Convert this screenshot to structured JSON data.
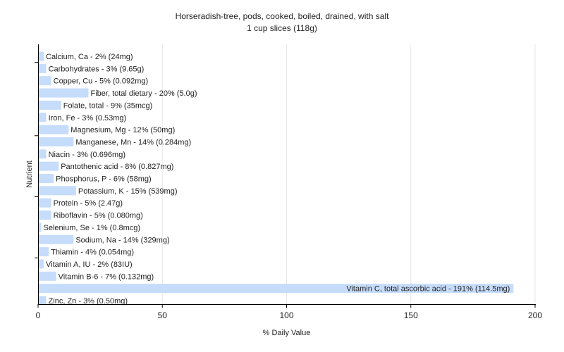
{
  "chart_data": {
    "type": "bar",
    "orientation": "horizontal",
    "title": "Horseradish-tree, pods, cooked, boiled, drained, with salt",
    "subtitle": "1 cup slices (118g)",
    "xlabel": "% Daily Value",
    "ylabel": "Nutrient",
    "xlim": [
      0,
      200
    ],
    "xticks": [
      "0",
      "50",
      "100",
      "150",
      "200"
    ],
    "grid": true,
    "bar_color": "#c6dcfb",
    "categories": [
      "Calcium, Ca",
      "Carbohydrates",
      "Copper, Cu",
      "Fiber, total dietary",
      "Folate, total",
      "Iron, Fe",
      "Magnesium, Mg",
      "Manganese, Mn",
      "Niacin",
      "Pantothenic acid",
      "Phosphorus, P",
      "Potassium, K",
      "Protein",
      "Riboflavin",
      "Selenium, Se",
      "Sodium, Na",
      "Thiamin",
      "Vitamin A, IU",
      "Vitamin B-6",
      "Vitamin C, total ascorbic acid",
      "Zinc, Zn"
    ],
    "values": [
      2,
      3,
      5,
      20,
      9,
      3,
      12,
      14,
      3,
      8,
      6,
      15,
      5,
      5,
      1,
      14,
      4,
      2,
      7,
      191,
      3
    ],
    "labels": [
      "Calcium, Ca - 2% (24mg)",
      "Carbohydrates - 3% (9.65g)",
      "Copper, Cu - 5% (0.092mg)",
      "Fiber, total dietary - 20% (5.0g)",
      "Folate, total - 9% (35mcg)",
      "Iron, Fe - 3% (0.53mg)",
      "Magnesium, Mg - 12% (50mg)",
      "Manganese, Mn - 14% (0.284mg)",
      "Niacin - 3% (0.696mg)",
      "Pantothenic acid - 8% (0.827mg)",
      "Phosphorus, P - 6% (58mg)",
      "Potassium, K - 15% (539mg)",
      "Protein - 5% (2.47g)",
      "Riboflavin - 5% (0.080mg)",
      "Selenium, Se - 1% (0.8mcg)",
      "Sodium, Na - 14% (329mg)",
      "Thiamin - 4% (0.054mg)",
      "Vitamin A, IU - 2% (83IU)",
      "Vitamin B-6 - 7% (0.132mg)",
      "Vitamin C, total ascorbic acid - 191% (114.5mg)",
      "Zinc, Zn - 3% (0.50mg)"
    ]
  }
}
